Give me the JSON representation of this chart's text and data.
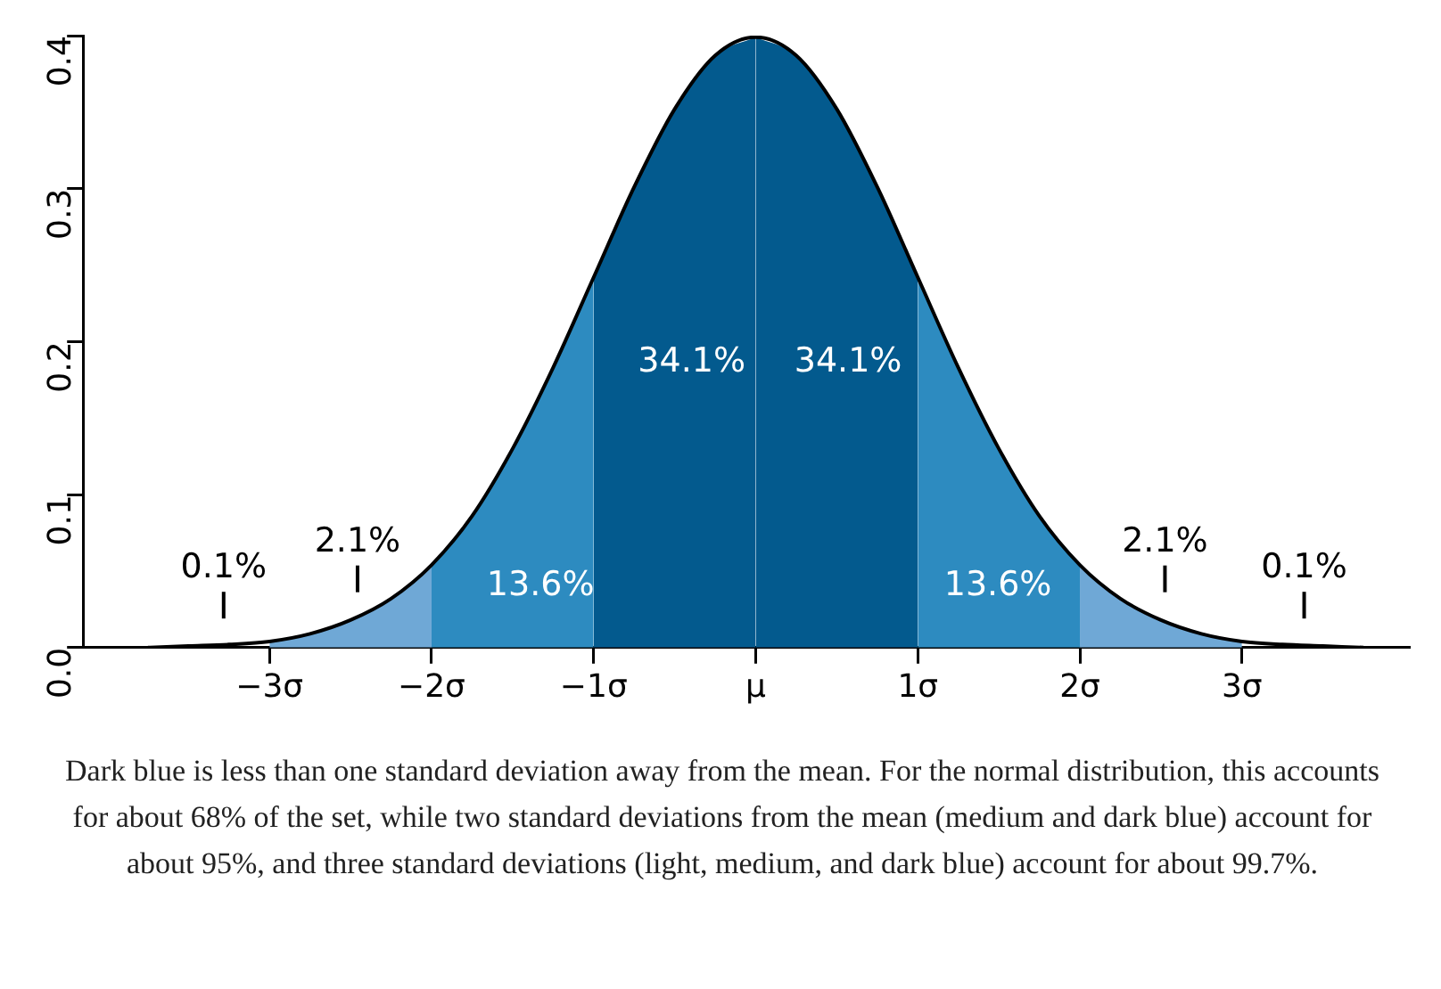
{
  "chart_data": {
    "type": "area",
    "xlim": [
      -4.15,
      4.03
    ],
    "ylim": [
      0,
      0.4
    ],
    "xticks": [
      {
        "value": -3,
        "label": "−3σ"
      },
      {
        "value": -2,
        "label": "−2σ"
      },
      {
        "value": -1,
        "label": "−1σ"
      },
      {
        "value": 0,
        "label": "μ"
      },
      {
        "value": 1,
        "label": "1σ"
      },
      {
        "value": 2,
        "label": "2σ"
      },
      {
        "value": 3,
        "label": "3σ"
      }
    ],
    "yticks": [
      {
        "value": 0,
        "label": "0.0"
      },
      0.1,
      0.2,
      0.3,
      0.4
    ],
    "grid": false,
    "legend": false,
    "series": [
      {
        "color": "#6fa8d6",
        "x": [
          -3,
          -2.75,
          -2.5,
          -2.25,
          -2
        ],
        "values": [
          0.004,
          0.009,
          0.018,
          0.032,
          0.054
        ]
      },
      {
        "color": "#2d8bc0",
        "x": [
          -2,
          -1.75,
          -1.5,
          -1.25,
          -1
        ],
        "values": [
          0.054,
          0.086,
          0.13,
          0.183,
          0.242
        ]
      },
      {
        "color": "#035a8e",
        "x": [
          -1,
          -0.75,
          -0.5,
          -0.25,
          0
        ],
        "values": [
          0.242,
          0.301,
          0.352,
          0.387,
          0.399
        ]
      },
      {
        "color": "#035a8e",
        "x": [
          0,
          0.25,
          0.5,
          0.75,
          1
        ],
        "values": [
          0.399,
          0.387,
          0.352,
          0.301,
          0.242
        ]
      },
      {
        "color": "#2d8bc0",
        "x": [
          1,
          1.25,
          1.5,
          1.75,
          2
        ],
        "values": [
          0.242,
          0.183,
          0.13,
          0.086,
          0.054
        ]
      },
      {
        "color": "#6fa8d6",
        "x": [
          2,
          2.25,
          2.5,
          2.75,
          3
        ],
        "values": [
          0.054,
          0.032,
          0.018,
          0.009,
          0.004
        ]
      },
      {
        "type": "line",
        "color": "#000000",
        "x": [
          -3.75,
          -3.5,
          -3.25,
          -3,
          -2.75,
          -2.5,
          -2.25,
          -2,
          -1.75,
          -1.5,
          -1.25,
          -1,
          -0.75,
          -0.5,
          -0.25,
          0,
          0.25,
          0.5,
          0.75,
          1,
          1.25,
          1.5,
          1.75,
          2,
          2.25,
          2.5,
          2.75,
          3,
          3.25,
          3.5,
          3.75
        ],
        "values": [
          0,
          0.001,
          0.002,
          0.004,
          0.009,
          0.018,
          0.032,
          0.054,
          0.086,
          0.13,
          0.183,
          0.242,
          0.301,
          0.352,
          0.387,
          0.399,
          0.387,
          0.352,
          0.301,
          0.242,
          0.183,
          0.13,
          0.086,
          0.054,
          0.032,
          0.018,
          0.009,
          0.004,
          0.002,
          0.001,
          0
        ]
      }
    ],
    "annotations": [
      "34.1%",
      "34.1%",
      "13.6%",
      "13.6%",
      "2.1%",
      "2.1%",
      "0.1%",
      "0.1%",
      "Dark blue is less than one standard deviation away from the mean. For the normal distribution, this accounts for about 68% of the set, while two standard deviations from the mean (medium and dark blue) account for about 95%, and three standard deviations (light, medium, and dark blue) account for about 99.7%."
    ]
  }
}
